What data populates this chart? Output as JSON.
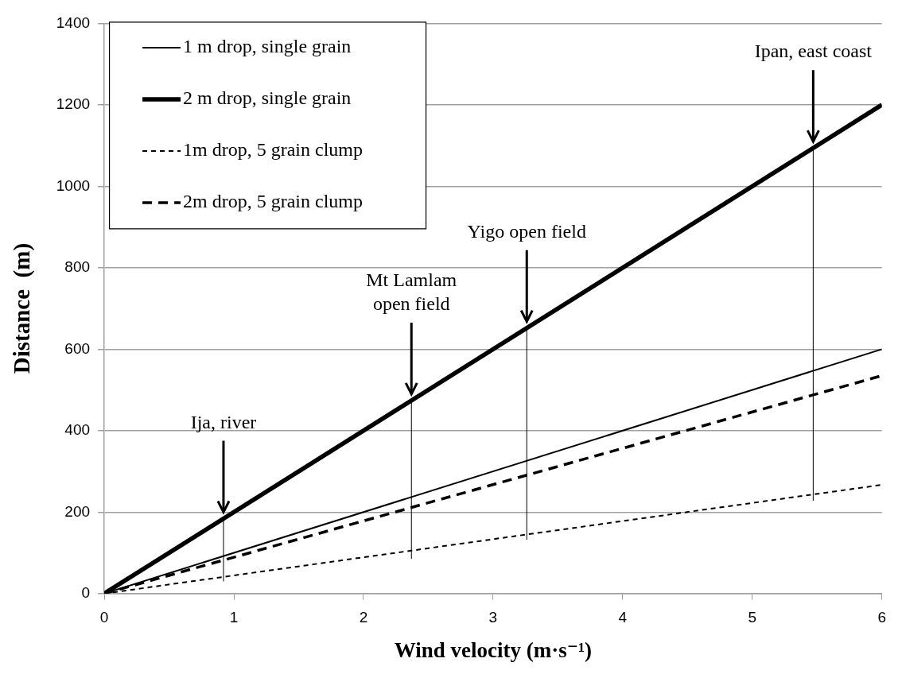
{
  "chart_data": {
    "type": "line",
    "xlabel": "Wind velocity (m·s⁻¹)",
    "ylabel": "Distance  (m)",
    "x": [
      0,
      6
    ],
    "series": [
      {
        "name": "1 m drop, single grain",
        "color": "#000000",
        "values": [
          0,
          600
        ],
        "line_style": "solid"
      },
      {
        "name": "2 m drop, single grain",
        "color": "#000000",
        "values": [
          0,
          1200
        ],
        "line_style": "solid"
      },
      {
        "name": "1m drop, 5 grain clump",
        "color": "#000000",
        "values": [
          0,
          267
        ],
        "line_style": "dashed"
      },
      {
        "name": "2m drop, 5 grain clump",
        "color": "#000000",
        "values": [
          0,
          535
        ],
        "line_style": "dashed"
      },
      {
        "type": "line",
        "color": "#000000",
        "x": [
          0.92,
          0.92
        ],
        "values": [
          30,
          184
        ],
        "line_style": "solid"
      },
      {
        "type": "line",
        "color": "#000000",
        "x": [
          2.37,
          2.37
        ],
        "values": [
          85,
          474
        ],
        "line_style": "solid"
      },
      {
        "type": "line",
        "color": "#000000",
        "x": [
          3.26,
          3.26
        ],
        "values": [
          132,
          652
        ],
        "line_style": "solid"
      },
      {
        "type": "line",
        "color": "#000000",
        "x": [
          5.47,
          5.47
        ],
        "values": [
          228,
          1094
        ],
        "line_style": "solid"
      }
    ],
    "xlim": [
      0,
      6
    ],
    "xticks": [
      0,
      1,
      2,
      3,
      4,
      5,
      6
    ],
    "ylim": [
      0,
      1400
    ],
    "yticks": [
      0,
      200,
      400,
      600,
      800,
      1000,
      1200,
      1400
    ],
    "grid": "y",
    "legend": "top left",
    "marker": "none",
    "annotations": [
      "Ija, river",
      "Mt Lamlam\nopen field",
      "Yigo open field",
      "Ipan, east coast"
    ]
  }
}
